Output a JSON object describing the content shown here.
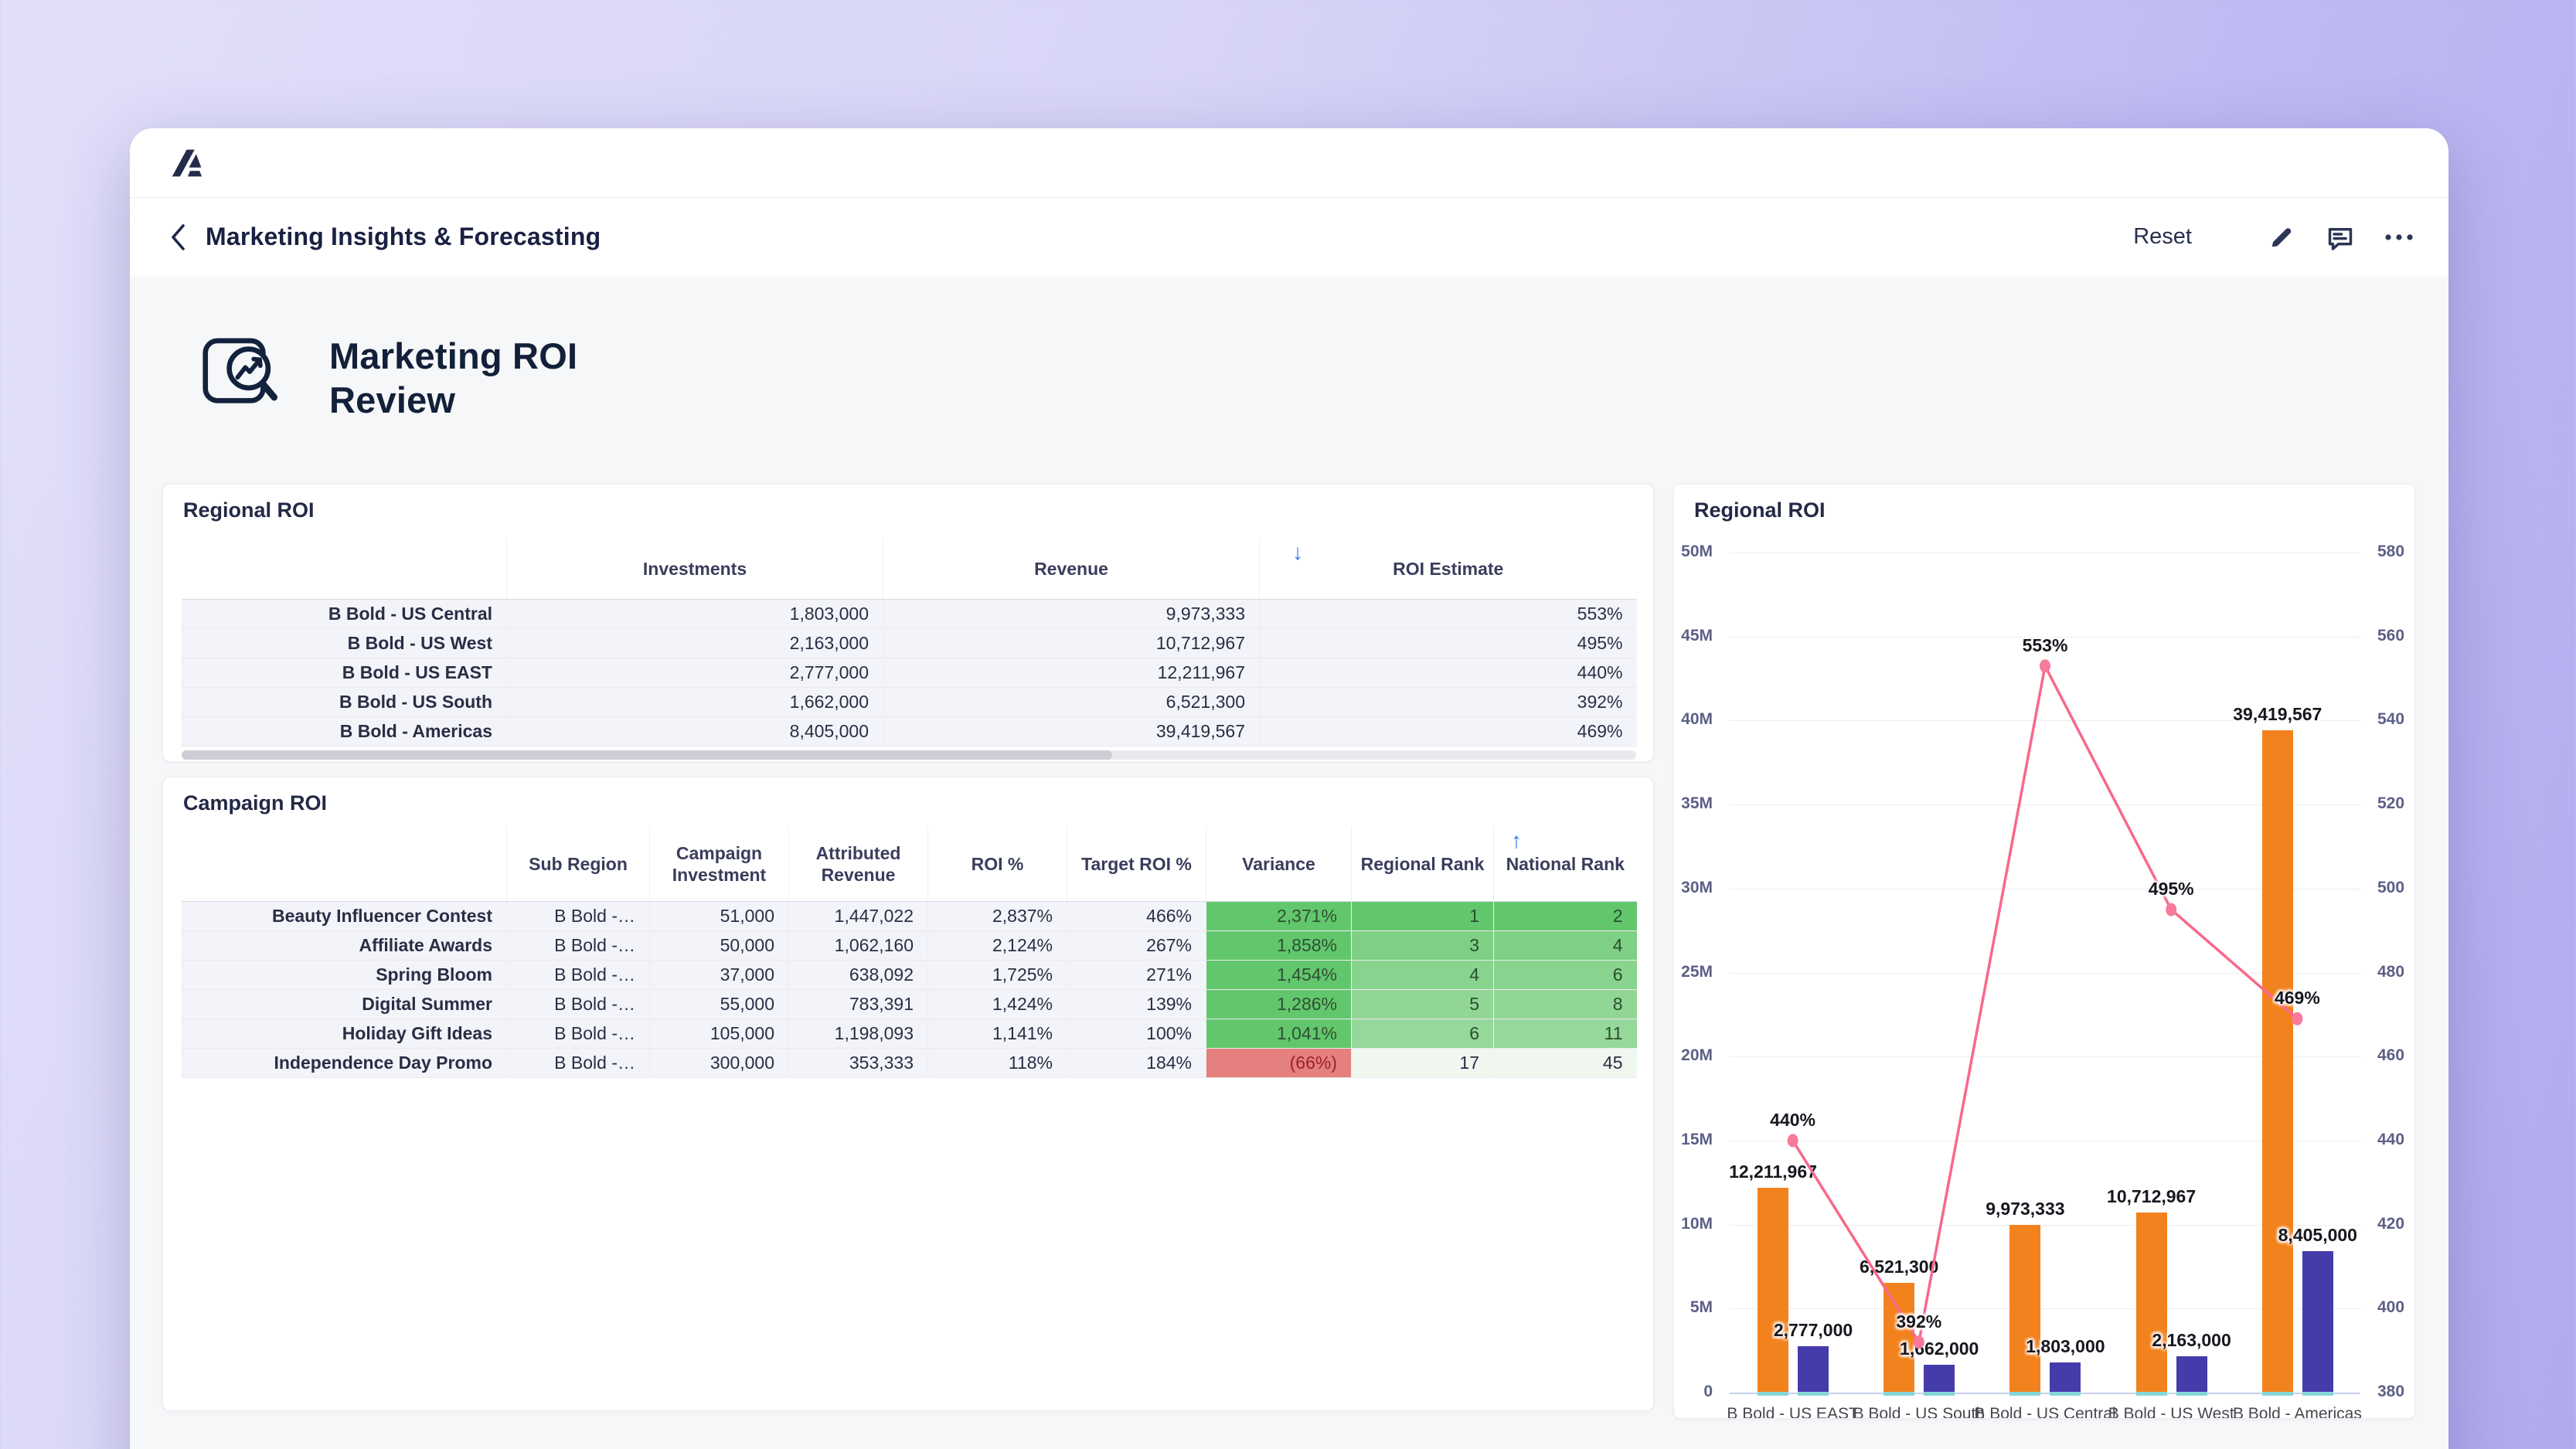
{
  "app": {
    "logo": "A-logo",
    "nav_title": "Marketing Insights & Forecasting",
    "reset_label": "Reset",
    "accent_blue": "#3575f0",
    "navy": "#273051"
  },
  "page": {
    "title_line1": "Marketing ROI",
    "title_line2": "Review"
  },
  "regional_table": {
    "title": "Regional ROI",
    "columns": [
      "",
      "Investments",
      "Revenue",
      "ROI Estimate"
    ],
    "sort": {
      "column": "ROI Estimate",
      "direction": "desc",
      "arrow": "↓",
      "color": "#3575f0"
    },
    "rows": [
      {
        "name": "B Bold - US Central",
        "investments": "1,803,000",
        "revenue": "9,973,333",
        "roi": "553%"
      },
      {
        "name": "B Bold - US West",
        "investments": "2,163,000",
        "revenue": "10,712,967",
        "roi": "495%"
      },
      {
        "name": "B Bold - US EAST",
        "investments": "2,777,000",
        "revenue": "12,211,967",
        "roi": "440%"
      },
      {
        "name": "B Bold - US South",
        "investments": "1,662,000",
        "revenue": "6,521,300",
        "roi": "392%"
      },
      {
        "name": "B Bold - Americas",
        "investments": "8,405,000",
        "revenue": "39,419,567",
        "roi": "469%"
      }
    ]
  },
  "campaign_table": {
    "title": "Campaign ROI",
    "columns": [
      "",
      "Sub Region",
      "Campaign Investment",
      "Attributed Revenue",
      "ROI %",
      "Target ROI %",
      "Variance",
      "Regional Rank",
      "National Rank"
    ],
    "sort": {
      "column": "National Rank",
      "direction": "asc",
      "arrow": "↑",
      "color": "#3575f0"
    },
    "rows": [
      {
        "name": "Beauty Influencer Contest",
        "sub_region": "B Bold -…",
        "investment": "51,000",
        "revenue": "1,447,022",
        "roi": "2,837%",
        "target_roi": "466%",
        "variance": "2,371%",
        "regional_rank": "1",
        "national_rank": "2",
        "variance_bg": "#62c76c",
        "variance_fg": "#2f4f35",
        "regional_bg": "#62c76c",
        "national_bg": "#62c76c",
        "rank_fg": "#274e2d"
      },
      {
        "name": "Affiliate Awards",
        "sub_region": "B Bold -…",
        "investment": "50,000",
        "revenue": "1,062,160",
        "roi": "2,124%",
        "target_roi": "267%",
        "variance": "1,858%",
        "regional_rank": "3",
        "national_rank": "4",
        "variance_bg": "#62c76c",
        "variance_fg": "#2f4f35",
        "regional_bg": "#7ed084",
        "national_bg": "#7ed084",
        "rank_fg": "#274e2d"
      },
      {
        "name": "Spring Bloom",
        "sub_region": "B Bold -…",
        "investment": "37,000",
        "revenue": "638,092",
        "roi": "1,725%",
        "target_roi": "271%",
        "variance": "1,454%",
        "regional_rank": "4",
        "national_rank": "6",
        "variance_bg": "#62c76c",
        "variance_fg": "#2f4f35",
        "regional_bg": "#88d38d",
        "national_bg": "#88d38d",
        "rank_fg": "#274e2d"
      },
      {
        "name": "Digital Summer",
        "sub_region": "B Bold -…",
        "investment": "55,000",
        "revenue": "783,391",
        "roi": "1,424%",
        "target_roi": "139%",
        "variance": "1,286%",
        "regional_rank": "5",
        "national_rank": "8",
        "variance_bg": "#62c76c",
        "variance_fg": "#2f4f35",
        "regional_bg": "#92d696",
        "national_bg": "#92d696",
        "rank_fg": "#274e2d"
      },
      {
        "name": "Holiday Gift Ideas",
        "sub_region": "B Bold -…",
        "investment": "105,000",
        "revenue": "1,198,093",
        "roi": "1,141%",
        "target_roi": "100%",
        "variance": "1,041%",
        "regional_rank": "6",
        "national_rank": "11",
        "variance_bg": "#62c76c",
        "variance_fg": "#2f4f35",
        "regional_bg": "#96d79a",
        "national_bg": "#96d79a",
        "rank_fg": "#274e2d"
      },
      {
        "name": "Independence Day Promo",
        "sub_region": "B Bold -…",
        "investment": "300,000",
        "revenue": "353,333",
        "roi": "118%",
        "target_roi": "184%",
        "variance": "(66%)",
        "regional_rank": "17",
        "national_rank": "45",
        "variance_bg": "#e4807e",
        "variance_fg": "#9c1f2e",
        "regional_bg": "#eff7ef",
        "national_bg": "#eff7ef",
        "rank_fg": "#2b2d45"
      }
    ]
  },
  "chart_data": {
    "type": "combo-bar-line",
    "title": "Regional ROI",
    "categories": [
      "B Bold - US EAST",
      "B Bold - US South",
      "B Bold - US Central",
      "B Bold - US West",
      "B Bold - Americas"
    ],
    "series": [
      {
        "name": "Revenue",
        "type": "bar",
        "axis": "left",
        "color": "#f2821d",
        "values": [
          12211967,
          6521300,
          9973333,
          10712967,
          39419567
        ],
        "labels": [
          "12,211,967",
          "6,521,300",
          "9,973,333",
          "10,712,967",
          "39,419,567"
        ]
      },
      {
        "name": "Investments",
        "type": "bar",
        "axis": "left",
        "color": "#453bab",
        "values": [
          2777000,
          1662000,
          1803000,
          2163000,
          8405000
        ],
        "labels": [
          "2,777,000",
          "1,662,000",
          "1,803,000",
          "2,163,000",
          "8,405,000"
        ]
      },
      {
        "name": "ROI Estimate",
        "type": "line",
        "axis": "right",
        "color": "#f9688c",
        "point_color": "#f8799a",
        "values": [
          440,
          392,
          553,
          495,
          469
        ],
        "labels": [
          "440%",
          "392%",
          "553%",
          "495%",
          "469%"
        ]
      }
    ],
    "left_axis": {
      "min": 0,
      "max": 50000000,
      "tick_step": 5000000,
      "ticks": [
        "0",
        "5M",
        "10M",
        "15M",
        "20M",
        "25M",
        "30M",
        "35M",
        "40M",
        "45M",
        "50M"
      ]
    },
    "right_axis": {
      "min": 380,
      "max": 580,
      "tick_step": 20,
      "ticks": [
        "380",
        "400",
        "420",
        "440",
        "460",
        "480",
        "500",
        "520",
        "540",
        "560",
        "580"
      ]
    },
    "grid": true,
    "legend": "none",
    "baseline_tick_color": "#85d6d8"
  }
}
